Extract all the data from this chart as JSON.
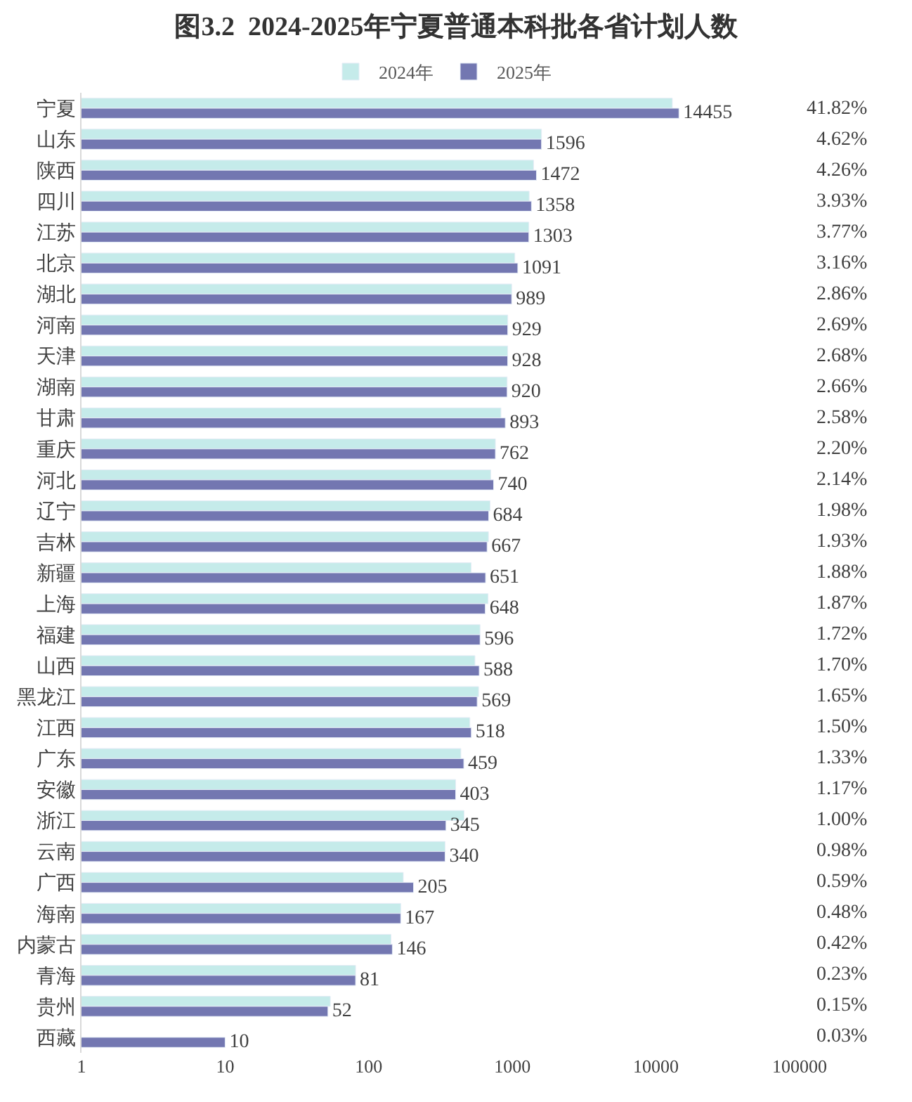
{
  "chart_data": {
    "type": "bar",
    "orientation": "horizontal",
    "title": "图3.2  2024-2025年宁夏普通本科批各省计划人数",
    "log": "x",
    "xlim": [
      1,
      100000
    ],
    "xticks": [
      1,
      10,
      100,
      1000,
      10000,
      100000
    ],
    "legend": "top",
    "categories": [
      "宁夏",
      "山东",
      "陕西",
      "四川",
      "江苏",
      "北京",
      "湖北",
      "河南",
      "天津",
      "湖南",
      "甘肃",
      "重庆",
      "河北",
      "辽宁",
      "吉林",
      "新疆",
      "上海",
      "福建",
      "山西",
      "黑龙江",
      "江西",
      "广东",
      "安徽",
      "浙江",
      "云南",
      "广西",
      "海南",
      "内蒙古",
      "青海",
      "贵州",
      "西藏"
    ],
    "series": [
      {
        "name": "2024年",
        "color": "#c5ebea",
        "values": [
          13000,
          1596,
          1405,
          1310,
          1303,
          1040,
          989,
          929,
          928,
          920,
          833,
          762,
          707,
          700,
          682,
          517,
          678,
          596,
          549,
          582,
          506,
          438,
          403,
          461,
          340,
          174,
          167,
          143,
          81,
          54,
          null
        ]
      },
      {
        "name": "2025年",
        "color": "#7377b1",
        "values": [
          14455,
          1596,
          1472,
          1358,
          1303,
          1091,
          989,
          929,
          928,
          920,
          893,
          762,
          740,
          684,
          667,
          651,
          648,
          596,
          588,
          569,
          518,
          459,
          403,
          345,
          340,
          205,
          167,
          146,
          81,
          52,
          10
        ],
        "value_labels": [
          "14455",
          "1596",
          "1472",
          "1358",
          "1303",
          "1091",
          "989",
          "929",
          "928",
          "920",
          "893",
          "762",
          "740",
          "684",
          "667",
          "651",
          "648",
          "596",
          "588",
          "569",
          "518",
          "459",
          "403",
          "345",
          "340",
          "205",
          "167",
          "146",
          "81",
          "52",
          "10"
        ]
      }
    ],
    "annotations": [
      "41.82%",
      "4.62%",
      "4.26%",
      "3.93%",
      "3.77%",
      "3.16%",
      "2.86%",
      "2.69%",
      "2.68%",
      "2.66%",
      "2.58%",
      "2.20%",
      "2.14%",
      "1.98%",
      "1.93%",
      "1.88%",
      "1.87%",
      "1.72%",
      "1.70%",
      "1.65%",
      "1.50%",
      "1.33%",
      "1.17%",
      "1.00%",
      "0.98%",
      "0.59%",
      "0.48%",
      "0.42%",
      "0.23%",
      "0.15%",
      "0.03%"
    ]
  }
}
